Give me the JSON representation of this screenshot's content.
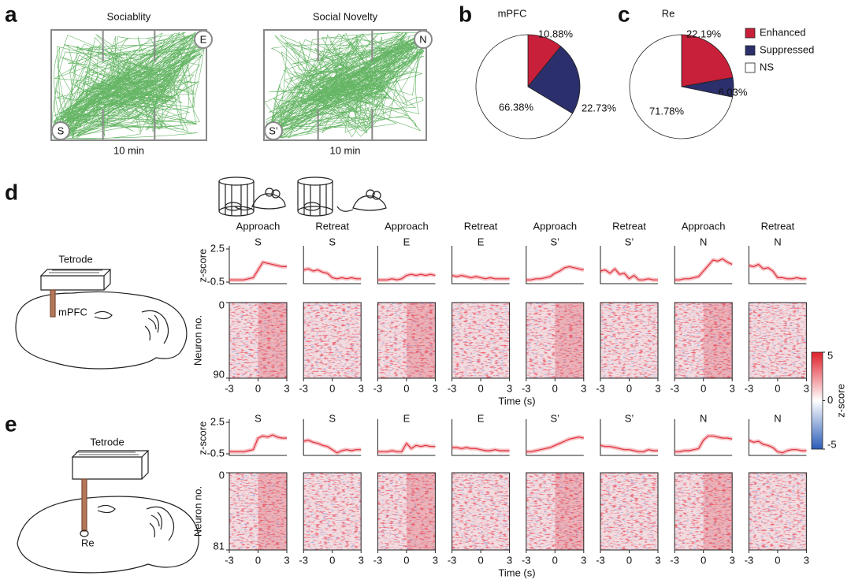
{
  "panel_a": {
    "label": "a",
    "arenas": [
      {
        "title": "Sociablity",
        "zones": [
          "S",
          "E"
        ],
        "duration": "10 min"
      },
      {
        "title": "Social Novelty",
        "zones": [
          "S’",
          "N"
        ],
        "duration": "10 min"
      }
    ]
  },
  "chart_data": [
    {
      "type": "pie",
      "label": "b",
      "title": "mPFC",
      "categories": [
        "Enhanced",
        "Suppressed",
        "NS"
      ],
      "values": [
        10.88,
        22.73,
        66.38
      ],
      "value_labels": [
        "10.88%",
        "22.73%",
        "66.38%"
      ],
      "colors": [
        "#c8203a",
        "#2b2f6b",
        "#ffffff"
      ],
      "legend": false
    },
    {
      "type": "pie",
      "label": "c",
      "title": "Re",
      "categories": [
        "Enhanced",
        "Suppressed",
        "NS"
      ],
      "values": [
        22.19,
        6.03,
        71.78
      ],
      "value_labels": [
        "22.19%",
        "6.03%",
        "71.78%"
      ],
      "colors": [
        "#c8203a",
        "#2b2f6b",
        "#ffffff"
      ],
      "legend": true
    }
  ],
  "panel_d": {
    "label": "d",
    "probe": "Tetrode",
    "region": "mPFC",
    "phases": [
      "Approach",
      "Retreat",
      "Approach",
      "Retreat",
      "Approach",
      "Retreat",
      "Approach",
      "Retreat"
    ],
    "targets": [
      "S",
      "S",
      "E",
      "E",
      "S’",
      "S’",
      "N",
      "N"
    ],
    "trace": {
      "ylabel": "z-score",
      "ylim": [
        -0.5,
        2.5
      ],
      "yticks": [
        -0.5,
        2.5
      ],
      "xlim": [
        -3,
        3
      ],
      "color": "#e0303a",
      "x": [
        -3,
        -2.5,
        -2,
        -1.5,
        -1,
        -0.5,
        0,
        0.5,
        1,
        1.5,
        2,
        2.5,
        3
      ],
      "series": [
        {
          "values": [
            -0.3,
            -0.3,
            -0.3,
            -0.3,
            -0.2,
            -0.1,
            0.6,
            1.3,
            1.2,
            1.1,
            1.0,
            0.9,
            0.9
          ]
        },
        {
          "values": [
            0.6,
            0.7,
            0.5,
            0.6,
            0.4,
            0.3,
            -0.1,
            -0.2,
            -0.1,
            -0.2,
            -0.1,
            -0.2,
            -0.2
          ]
        },
        {
          "values": [
            -0.3,
            -0.3,
            -0.3,
            -0.2,
            -0.3,
            -0.2,
            0.1,
            0.2,
            0.1,
            0.2,
            0.1,
            0.2,
            0.1
          ]
        },
        {
          "values": [
            0.1,
            0.0,
            0.1,
            0.0,
            -0.1,
            0.0,
            -0.1,
            -0.2,
            -0.1,
            -0.2,
            -0.2,
            -0.2,
            -0.2
          ]
        },
        {
          "values": [
            -0.3,
            -0.3,
            -0.2,
            -0.2,
            -0.1,
            0.0,
            0.3,
            0.5,
            0.8,
            0.9,
            0.8,
            0.7,
            0.6
          ]
        },
        {
          "values": [
            0.5,
            0.6,
            0.3,
            0.7,
            0.2,
            0.3,
            -0.2,
            0.1,
            -0.3,
            -0.3,
            -0.2,
            -0.3,
            -0.3
          ]
        },
        {
          "values": [
            -0.3,
            -0.3,
            -0.2,
            -0.2,
            -0.1,
            0.0,
            0.5,
            1.0,
            1.5,
            1.4,
            1.6,
            1.3,
            1.1
          ]
        },
        {
          "values": [
            1.0,
            0.9,
            1.1,
            0.7,
            0.8,
            0.5,
            -0.1,
            -0.1,
            -0.2,
            -0.2,
            -0.1,
            -0.2,
            -0.2
          ]
        }
      ]
    },
    "heatmap": {
      "ylabel": "Neuron no.",
      "ylim": [
        0,
        90
      ],
      "yticks": [
        0,
        90
      ],
      "xlim": [
        -3,
        3
      ],
      "xticks": [
        -3,
        0,
        3
      ],
      "xlabel": "Time (s)"
    }
  },
  "panel_e": {
    "label": "e",
    "probe": "Tetrode",
    "region": "Re",
    "targets": [
      "S",
      "S",
      "E",
      "E",
      "S’",
      "S’",
      "N",
      "N"
    ],
    "trace": {
      "ylabel": "z-score",
      "ylim": [
        -0.5,
        2.5
      ],
      "yticks": [
        -0.5,
        2.5
      ],
      "xlim": [
        -3,
        3
      ],
      "color": "#e0303a",
      "x": [
        -3,
        -2.5,
        -2,
        -1.5,
        -1,
        -0.5,
        0,
        0.5,
        1,
        1.5,
        2,
        2.5,
        3
      ],
      "series": [
        {
          "values": [
            -0.3,
            -0.3,
            -0.3,
            -0.3,
            -0.2,
            -0.1,
            1.0,
            1.2,
            1.1,
            1.3,
            1.1,
            1.0,
            1.0
          ]
        },
        {
          "values": [
            0.7,
            0.8,
            0.6,
            0.5,
            0.3,
            0.2,
            -0.1,
            -0.4,
            -0.2,
            -0.1,
            -0.2,
            -0.1,
            -0.1
          ]
        },
        {
          "values": [
            -0.3,
            -0.3,
            -0.3,
            -0.2,
            -0.3,
            -0.3,
            0.5,
            0.0,
            0.3,
            0.2,
            0.3,
            0.2,
            0.2
          ]
        },
        {
          "values": [
            0.1,
            0.1,
            0.0,
            0.1,
            0.0,
            0.0,
            -0.1,
            -0.2,
            -0.2,
            -0.1,
            -0.2,
            -0.2,
            -0.2
          ]
        },
        {
          "values": [
            -0.3,
            -0.3,
            -0.2,
            -0.1,
            0.0,
            0.1,
            0.3,
            0.5,
            0.7,
            0.9,
            1.0,
            1.1,
            1.0
          ]
        },
        {
          "values": [
            0.3,
            0.2,
            0.2,
            0.1,
            0.0,
            -0.1,
            -0.1,
            -0.2,
            -0.3,
            -0.3,
            -0.1,
            -0.2,
            -0.2
          ]
        },
        {
          "values": [
            -0.3,
            -0.3,
            -0.2,
            -0.2,
            -0.1,
            0.0,
            0.8,
            1.2,
            1.2,
            1.1,
            1.0,
            1.0,
            0.9
          ]
        },
        {
          "values": [
            0.8,
            0.6,
            0.7,
            0.4,
            0.3,
            0.1,
            -0.3,
            -0.4,
            -0.2,
            -0.1,
            -0.1,
            -0.2,
            -0.2
          ]
        }
      ]
    },
    "heatmap": {
      "ylabel": "Neuron no.",
      "ylim": [
        0,
        81
      ],
      "yticks": [
        0,
        81
      ],
      "xlim": [
        -3,
        3
      ],
      "xticks": [
        -3,
        0,
        3
      ],
      "xlabel": "Time (s)"
    }
  },
  "colorbar": {
    "label": "z-score",
    "lim": [
      -5,
      5
    ],
    "ticks": [
      -5,
      0,
      5
    ],
    "colors": [
      "#2b5cb8",
      "#ffffff",
      "#e0202a"
    ]
  }
}
